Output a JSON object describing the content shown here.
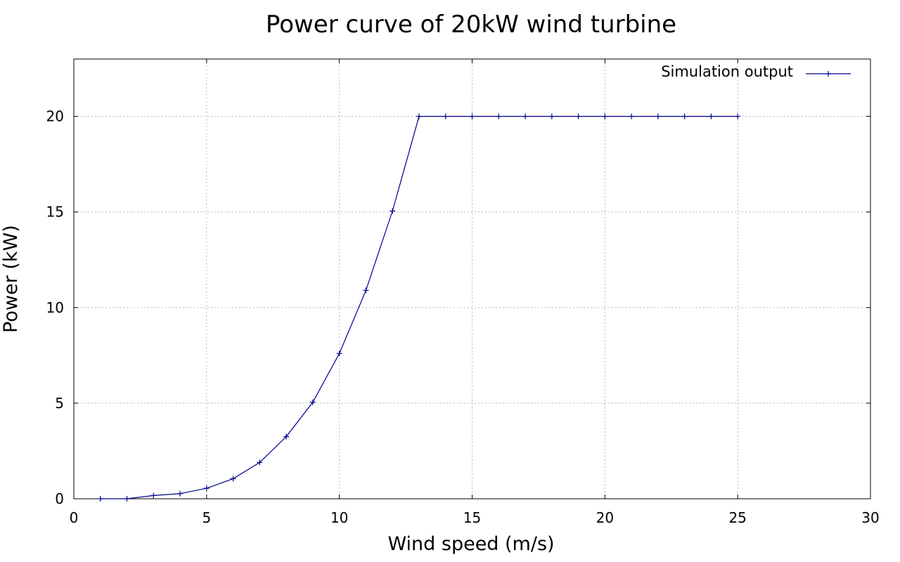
{
  "chart_data": {
    "type": "line",
    "title": "Power curve of 20kW wind turbine",
    "xlabel": "Wind speed (m/s)",
    "ylabel": "Power (kW)",
    "xlim": [
      0,
      30
    ],
    "ylim": [
      0,
      23
    ],
    "xticks": [
      0,
      5,
      10,
      15,
      20,
      25,
      30
    ],
    "yticks": [
      0,
      5,
      10,
      15,
      20
    ],
    "grid": true,
    "legend_position": "top-right",
    "series": [
      {
        "name": "Simulation output",
        "color": "#00008b",
        "marker": "plus",
        "x": [
          1,
          2,
          3,
          4,
          5,
          6,
          7,
          8,
          9,
          10,
          11,
          12,
          13,
          14,
          15,
          16,
          17,
          18,
          19,
          20,
          21,
          22,
          23,
          24,
          25
        ],
        "y": [
          0,
          0,
          0.17,
          0.27,
          0.55,
          1.05,
          1.9,
          3.25,
          5.05,
          7.6,
          10.9,
          15.05,
          20,
          20,
          20,
          20,
          20,
          20,
          20,
          20,
          20,
          20,
          20,
          20,
          20
        ]
      }
    ]
  }
}
